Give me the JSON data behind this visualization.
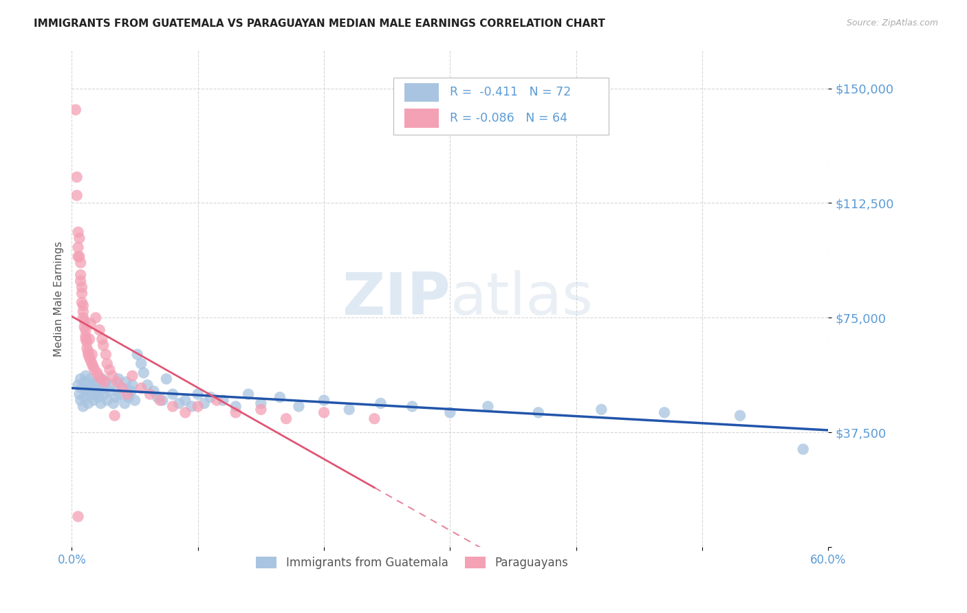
{
  "title": "IMMIGRANTS FROM GUATEMALA VS PARAGUAYAN MEDIAN MALE EARNINGS CORRELATION CHART",
  "source": "Source: ZipAtlas.com",
  "ylabel": "Median Male Earnings",
  "xlim": [
    0.0,
    0.6
  ],
  "ylim": [
    0,
    162500
  ],
  "yticks": [
    0,
    37500,
    75000,
    112500,
    150000
  ],
  "ytick_labels": [
    "",
    "$37,500",
    "$75,000",
    "$112,500",
    "$150,000"
  ],
  "xticks": [
    0.0,
    0.1,
    0.2,
    0.3,
    0.4,
    0.5,
    0.6
  ],
  "xtick_labels": [
    "0.0%",
    "",
    "",
    "",
    "",
    "",
    "60.0%"
  ],
  "r_blue": -0.411,
  "n_blue": 72,
  "r_pink": -0.086,
  "n_pink": 64,
  "legend_label_blue": "Immigrants from Guatemala",
  "legend_label_pink": "Paraguayans",
  "axis_color": "#5b9bd5",
  "blue_color": "#a8c4e0",
  "pink_color": "#f4a0b5",
  "blue_line_color": "#2255aa",
  "pink_line_color": "#e05575",
  "blue_scatter": {
    "x": [
      0.005,
      0.006,
      0.007,
      0.007,
      0.008,
      0.009,
      0.01,
      0.01,
      0.011,
      0.012,
      0.013,
      0.014,
      0.015,
      0.015,
      0.016,
      0.017,
      0.018,
      0.019,
      0.02,
      0.021,
      0.022,
      0.023,
      0.024,
      0.025,
      0.026,
      0.027,
      0.028,
      0.03,
      0.032,
      0.033,
      0.035,
      0.037,
      0.038,
      0.04,
      0.042,
      0.043,
      0.045,
      0.047,
      0.048,
      0.05,
      0.052,
      0.055,
      0.057,
      0.06,
      0.065,
      0.068,
      0.072,
      0.075,
      0.08,
      0.085,
      0.09,
      0.095,
      0.1,
      0.105,
      0.11,
      0.12,
      0.13,
      0.14,
      0.15,
      0.165,
      0.18,
      0.2,
      0.22,
      0.245,
      0.27,
      0.3,
      0.33,
      0.37,
      0.42,
      0.47,
      0.53,
      0.58
    ],
    "y": [
      53000,
      50000,
      48000,
      55000,
      52000,
      46000,
      54000,
      49000,
      56000,
      51000,
      47000,
      53000,
      50000,
      55000,
      52000,
      48000,
      54000,
      50000,
      53000,
      49000,
      51000,
      47000,
      55000,
      52000,
      50000,
      54000,
      48000,
      51000,
      53000,
      47000,
      49000,
      55000,
      50000,
      52000,
      47000,
      54000,
      49000,
      51000,
      53000,
      48000,
      63000,
      60000,
      57000,
      53000,
      51000,
      49000,
      48000,
      55000,
      50000,
      47000,
      48000,
      46000,
      50000,
      47000,
      49000,
      48000,
      46000,
      50000,
      47000,
      49000,
      46000,
      48000,
      45000,
      47000,
      46000,
      44000,
      46000,
      44000,
      45000,
      44000,
      43000,
      32000
    ]
  },
  "pink_scatter": {
    "x": [
      0.003,
      0.004,
      0.004,
      0.005,
      0.005,
      0.005,
      0.006,
      0.006,
      0.007,
      0.007,
      0.007,
      0.008,
      0.008,
      0.008,
      0.009,
      0.009,
      0.009,
      0.01,
      0.01,
      0.011,
      0.011,
      0.011,
      0.012,
      0.012,
      0.013,
      0.013,
      0.014,
      0.014,
      0.015,
      0.015,
      0.016,
      0.016,
      0.017,
      0.018,
      0.019,
      0.02,
      0.021,
      0.022,
      0.023,
      0.024,
      0.025,
      0.026,
      0.027,
      0.028,
      0.03,
      0.032,
      0.034,
      0.036,
      0.04,
      0.044,
      0.048,
      0.055,
      0.062,
      0.07,
      0.08,
      0.09,
      0.1,
      0.115,
      0.13,
      0.15,
      0.17,
      0.2,
      0.24,
      0.005
    ],
    "y": [
      143000,
      121000,
      115000,
      103000,
      98000,
      95000,
      101000,
      95000,
      93000,
      89000,
      87000,
      85000,
      83000,
      80000,
      79000,
      77000,
      75000,
      74000,
      72000,
      71000,
      69000,
      68000,
      67000,
      65000,
      64000,
      63000,
      68000,
      62000,
      61000,
      73000,
      60000,
      63000,
      59000,
      58000,
      75000,
      57000,
      56000,
      71000,
      55000,
      68000,
      66000,
      54000,
      63000,
      60000,
      58000,
      56000,
      43000,
      54000,
      52000,
      50000,
      56000,
      52000,
      50000,
      48000,
      46000,
      44000,
      46000,
      48000,
      44000,
      45000,
      42000,
      44000,
      42000,
      10000
    ]
  }
}
